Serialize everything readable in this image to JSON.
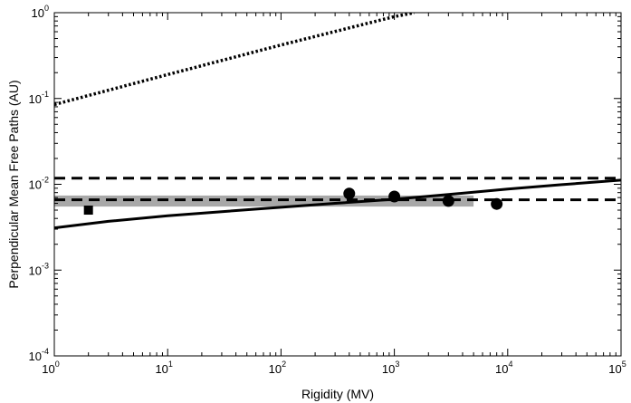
{
  "chart_data": {
    "type": "line",
    "title": "",
    "xlabel": "Rigidity (MV)",
    "ylabel": "Perpendicular Mean Free Paths (AU)",
    "xscale": "log",
    "yscale": "log",
    "xlim": [
      1,
      100000
    ],
    "ylim": [
      0.0001,
      1
    ],
    "grid": false,
    "legend": "none",
    "x_ticks": [
      {
        "value": 1,
        "base": "10",
        "exp": "0"
      },
      {
        "value": 10,
        "base": "10",
        "exp": "1"
      },
      {
        "value": 100,
        "base": "10",
        "exp": "2"
      },
      {
        "value": 1000,
        "base": "10",
        "exp": "3"
      },
      {
        "value": 10000,
        "base": "10",
        "exp": "4"
      },
      {
        "value": 100000,
        "base": "10",
        "exp": "5"
      }
    ],
    "y_ticks": [
      {
        "value": 0.0001,
        "base": "10",
        "exp": "-4"
      },
      {
        "value": 0.001,
        "base": "10",
        "exp": "-3"
      },
      {
        "value": 0.01,
        "base": "10",
        "exp": "-2"
      },
      {
        "value": 0.1,
        "base": "10",
        "exp": "-1"
      },
      {
        "value": 1,
        "base": "10",
        "exp": "0"
      }
    ],
    "series": [
      {
        "style": "dotted",
        "color": "#000000",
        "x": [
          1,
          10,
          100,
          1000,
          1500
        ],
        "y": [
          0.085,
          0.19,
          0.42,
          0.9,
          1.0
        ]
      },
      {
        "style": "solid",
        "color": "#000000",
        "x": [
          1,
          3,
          10,
          30,
          100,
          300,
          1000,
          3000,
          10000,
          30000,
          100000
        ],
        "y": [
          0.0031,
          0.0037,
          0.0043,
          0.0048,
          0.0054,
          0.006,
          0.0067,
          0.0076,
          0.0088,
          0.0099,
          0.0112
        ]
      },
      {
        "style": "dashed",
        "color": "#000000",
        "x": [
          1,
          100000
        ],
        "y": [
          0.0118,
          0.0118
        ]
      },
      {
        "style": "dashed",
        "color": "#000000",
        "x": [
          1,
          100000
        ],
        "y": [
          0.0066,
          0.0066
        ]
      }
    ],
    "band": {
      "color": "#a8a8a8",
      "x": [
        1,
        5000
      ],
      "y": [
        0.0055,
        0.0074
      ]
    },
    "points": [
      {
        "marker": "square",
        "x": 2,
        "y": 0.005
      },
      {
        "marker": "circle",
        "x": 400,
        "y": 0.0078
      },
      {
        "marker": "circle",
        "x": 1000,
        "y": 0.0072
      },
      {
        "marker": "circle",
        "x": 3000,
        "y": 0.0064
      },
      {
        "marker": "circle",
        "x": 8000,
        "y": 0.0059
      }
    ]
  }
}
